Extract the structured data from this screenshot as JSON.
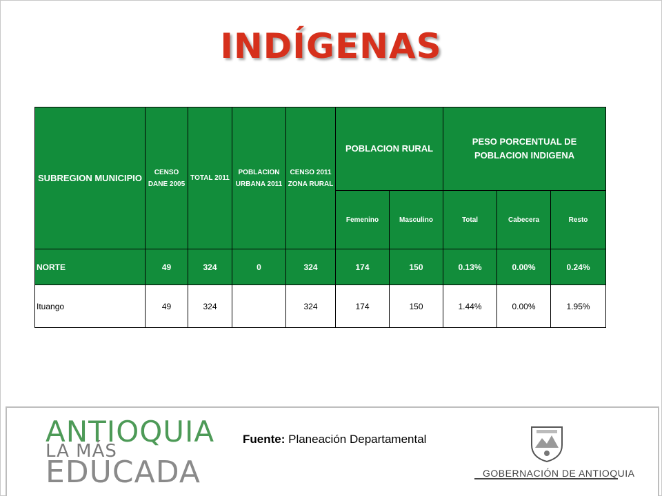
{
  "title": "INDÍGENAS",
  "table": {
    "headers": {
      "subregion": "SUBREGION MUNICIPIO",
      "censo_dane": "CENSO DANE 2005",
      "total": "TOTAL 2011",
      "poblacion_urbana": "POBLACION URBANA 2011",
      "censo_rural": "CENSO 2011 ZONA RURAL",
      "poblacion_rural": "POBLACION RURAL",
      "peso_porcentual": "PESO PORCENTUAL DE POBLACION INDIGENA",
      "femenino": "Femenino",
      "masculino": "Masculino",
      "total_pct": "Total",
      "cabecera": "Cabecera",
      "resto": "Resto"
    },
    "rows": [
      {
        "name": "NORTE",
        "censo_dane": "49",
        "total": "324",
        "urbana": "0",
        "rural": "324",
        "femenino": "174",
        "masculino": "150",
        "total_pct": "0.13%",
        "cabecera": "0.00%",
        "resto": "0.24%"
      },
      {
        "name": "Ituango",
        "censo_dane": "49",
        "total": "324",
        "urbana": "",
        "rural": "324",
        "femenino": "174",
        "masculino": "150",
        "total_pct": "1.44%",
        "cabecera": "0.00%",
        "resto": "1.95%"
      }
    ]
  },
  "footer": {
    "logo": [
      "ANTIOQUIA",
      "LA MÁS",
      "EDUCADA"
    ],
    "source_label": "Fuente:",
    "source_value": " Planeación Departamental",
    "gov": "GOBERNACIÓN DE ANTIOQUIA"
  },
  "colors": {
    "title": "#d6301c",
    "header_green": "#128d3b",
    "logo_green": "#4d9a57"
  }
}
